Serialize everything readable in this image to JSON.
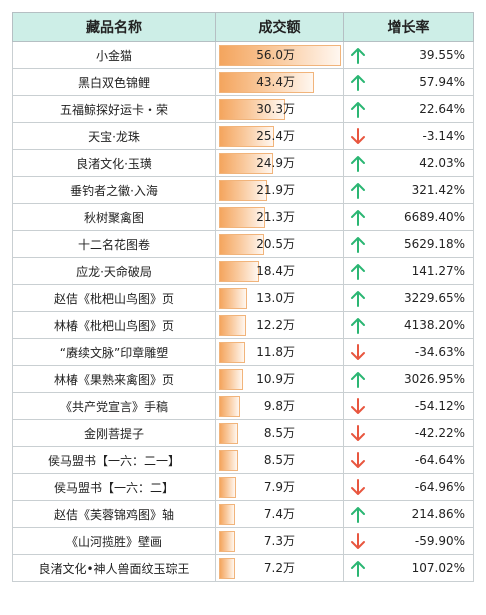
{
  "header": {
    "name": "藏品名称",
    "amount": "成交额",
    "growth": "增长率"
  },
  "colors": {
    "up": "#2bb673",
    "down": "#e8563f",
    "header_bg": "#cdeee7",
    "bar": "#f4a55e"
  },
  "chart_data": {
    "type": "table",
    "columns": [
      "藏品名称",
      "成交额",
      "增长率"
    ],
    "amount_max": 56.0,
    "rows": [
      {
        "name": "小金猫",
        "amount": 56.0,
        "amount_label": "56.0万",
        "direction": "up",
        "growth": "39.55%"
      },
      {
        "name": "黑白双色锦鲤",
        "amount": 43.4,
        "amount_label": "43.4万",
        "direction": "up",
        "growth": "57.94%"
      },
      {
        "name": "五福鲸探好运卡・荣",
        "amount": 30.3,
        "amount_label": "30.3万",
        "direction": "up",
        "growth": "22.64%"
      },
      {
        "name": "天宝·龙珠",
        "amount": 25.4,
        "amount_label": "25.4万",
        "direction": "down",
        "growth": "-3.14%"
      },
      {
        "name": "良渚文化·玉璜",
        "amount": 24.9,
        "amount_label": "24.9万",
        "direction": "up",
        "growth": "42.03%"
      },
      {
        "name": "垂钓者之徽·入海",
        "amount": 21.9,
        "amount_label": "21.9万",
        "direction": "up",
        "growth": "321.42%"
      },
      {
        "name": "秋树聚禽图",
        "amount": 21.3,
        "amount_label": "21.3万",
        "direction": "up",
        "growth": "6689.40%"
      },
      {
        "name": "十二名花图卷",
        "amount": 20.5,
        "amount_label": "20.5万",
        "direction": "up",
        "growth": "5629.18%"
      },
      {
        "name": "应龙·天命破局",
        "amount": 18.4,
        "amount_label": "18.4万",
        "direction": "up",
        "growth": "141.27%"
      },
      {
        "name": "赵佶《枇杷山鸟图》页",
        "amount": 13.0,
        "amount_label": "13.0万",
        "direction": "up",
        "growth": "3229.65%"
      },
      {
        "name": "林椿《枇杷山鸟图》页",
        "amount": 12.2,
        "amount_label": "12.2万",
        "direction": "up",
        "growth": "4138.20%"
      },
      {
        "name": "“赓续文脉”印章雕塑",
        "amount": 11.8,
        "amount_label": "11.8万",
        "direction": "down",
        "growth": "-34.63%"
      },
      {
        "name": "林椿《果熟来禽图》页",
        "amount": 10.9,
        "amount_label": "10.9万",
        "direction": "up",
        "growth": "3026.95%"
      },
      {
        "name": "《共产党宣言》手稿",
        "amount": 9.8,
        "amount_label": "9.8万",
        "direction": "down",
        "growth": "-54.12%"
      },
      {
        "name": "金刚菩提子",
        "amount": 8.5,
        "amount_label": "8.5万",
        "direction": "down",
        "growth": "-42.22%"
      },
      {
        "name": "侯马盟书【一六：二一】",
        "amount": 8.5,
        "amount_label": "8.5万",
        "direction": "down",
        "growth": "-64.64%"
      },
      {
        "name": "侯马盟书【一六：二】",
        "amount": 7.9,
        "amount_label": "7.9万",
        "direction": "down",
        "growth": "-64.96%"
      },
      {
        "name": "赵佶《芙蓉锦鸡图》轴",
        "amount": 7.4,
        "amount_label": "7.4万",
        "direction": "up",
        "growth": "214.86%"
      },
      {
        "name": "《山河揽胜》壁画",
        "amount": 7.3,
        "amount_label": "7.3万",
        "direction": "down",
        "growth": "-59.90%"
      },
      {
        "name": "良渚文化•神人兽面纹玉琮王",
        "amount": 7.2,
        "amount_label": "7.2万",
        "direction": "up",
        "growth": "107.02%"
      }
    ]
  }
}
